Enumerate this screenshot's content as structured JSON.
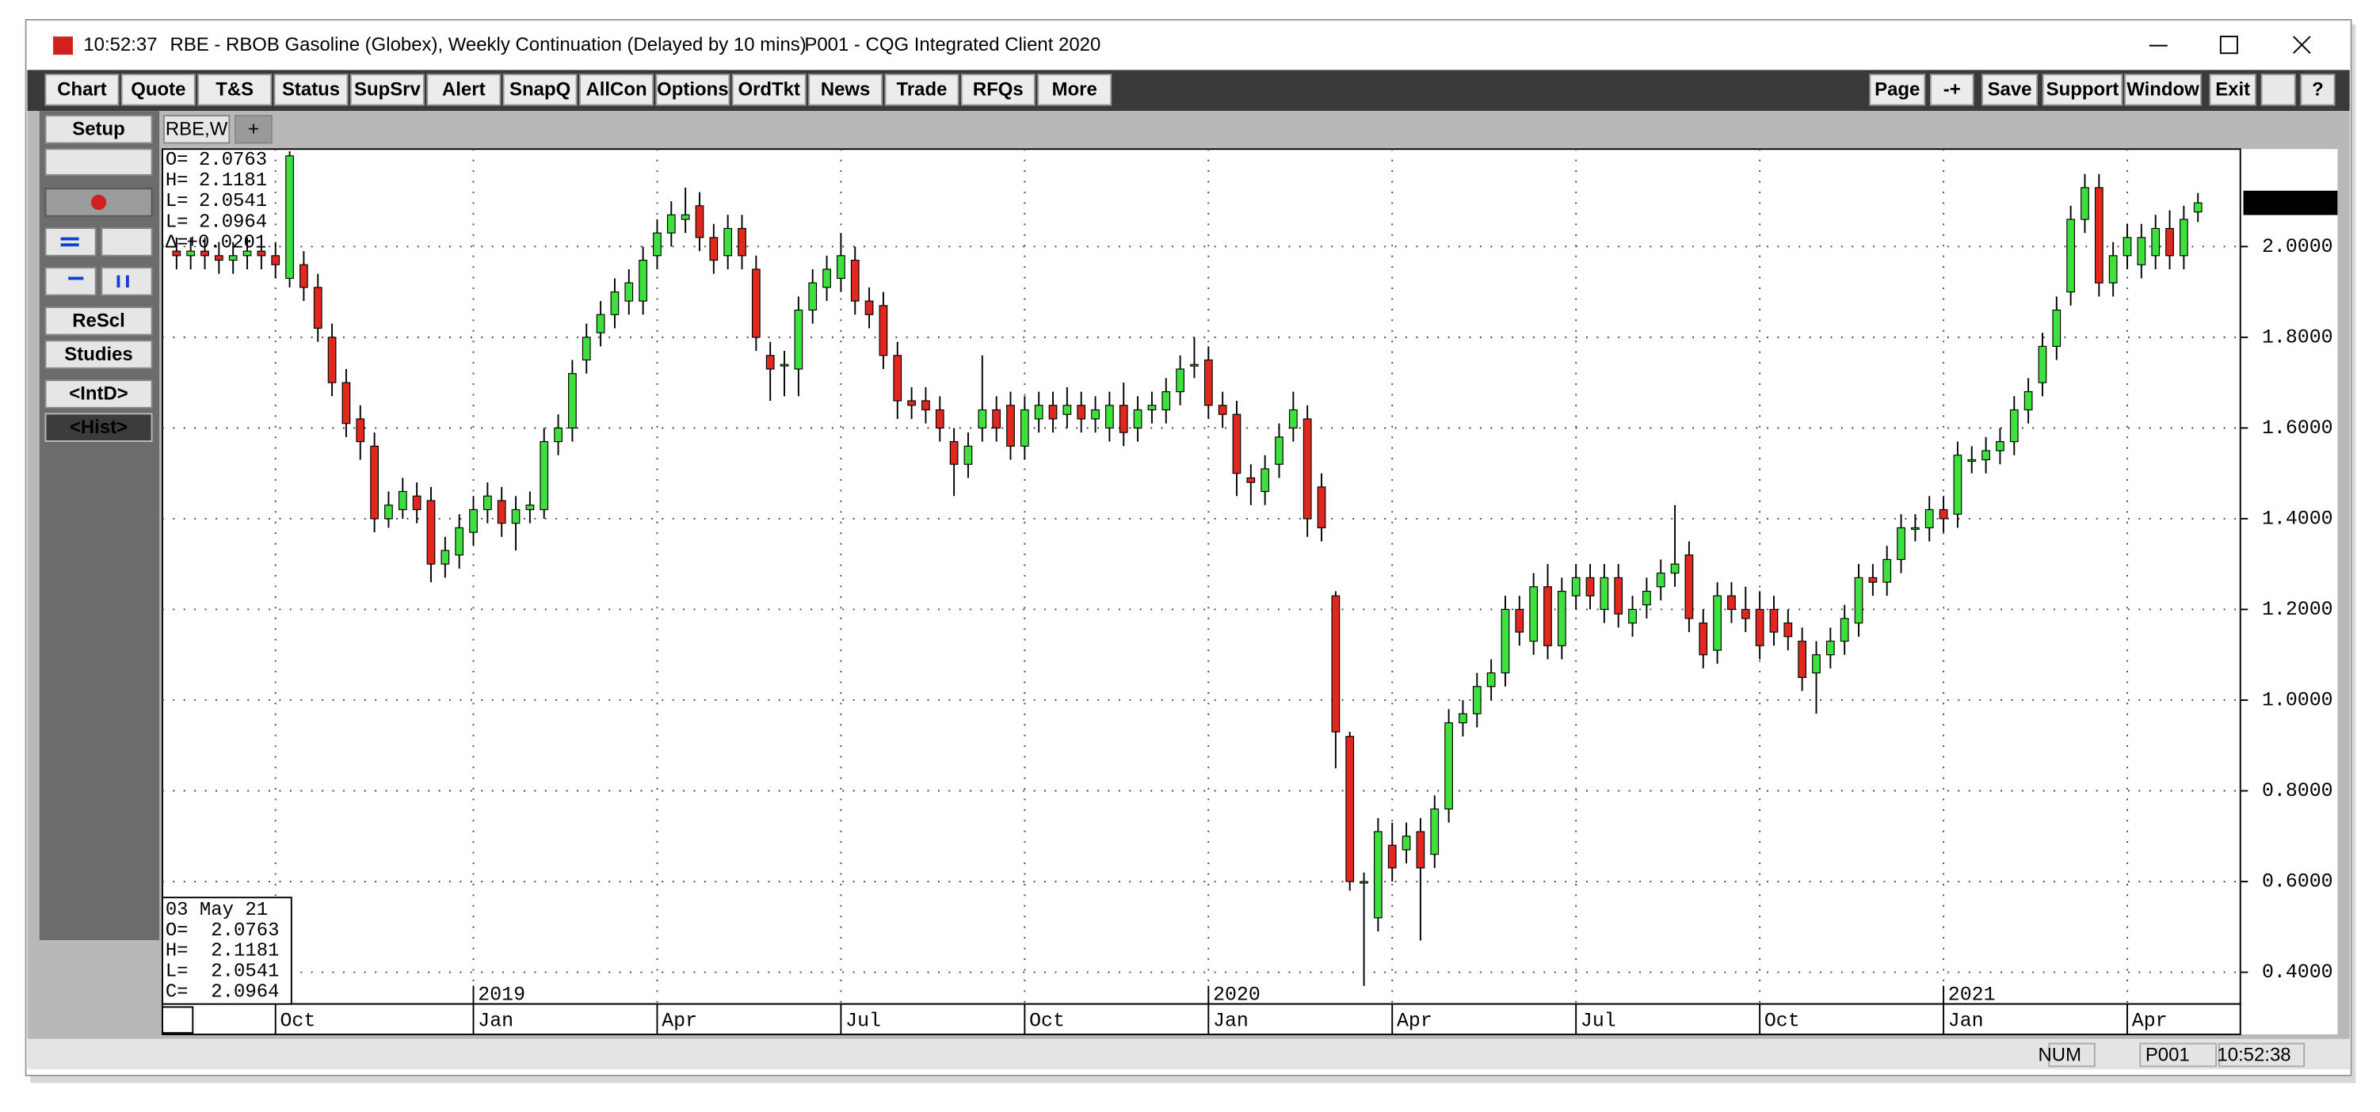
{
  "window": {
    "time": "10:52:37",
    "title": "RBE - RBOB Gasoline (Globex), Weekly Continuation (Delayed by 10 mins)",
    "app": "P001 - CQG Integrated Client 2020"
  },
  "toolbar": {
    "left": [
      "Chart",
      "Quote",
      "T&S",
      "Status",
      "SupSrv",
      "Alert",
      "SnapQ",
      "AllCon",
      "Options",
      "OrdTkt",
      "News",
      "Trade",
      "RFQs",
      "More"
    ],
    "right": [
      "Page",
      "-+",
      "Save",
      "Support",
      "Window",
      "Exit"
    ]
  },
  "sidebar": [
    "Setup",
    "ReScl",
    "Studies",
    "<IntD>",
    "<Hist>"
  ],
  "tabs": [
    "RBE,W",
    "+"
  ],
  "status_bar": [
    "NUM",
    "P001",
    "10:52:38"
  ],
  "chart_data": {
    "type": "candlestick",
    "up_color": "#3ee03e",
    "down_color": "#e0281e",
    "grid": true,
    "open": [
      1.99,
      1.98,
      1.99,
      1.98,
      1.97,
      1.98,
      1.99,
      1.98,
      1.93,
      1.96,
      1.91,
      1.8,
      1.7,
      1.62,
      1.56,
      1.4,
      1.42,
      1.45,
      1.44,
      1.3,
      1.32,
      1.37,
      1.42,
      1.44,
      1.39,
      1.42,
      1.42,
      1.57,
      1.6,
      1.75,
      1.81,
      1.85,
      1.88,
      1.88,
      1.98,
      2.03,
      2.06,
      2.09,
      2.02,
      1.98,
      2.04,
      1.95,
      1.76,
      1.74,
      1.73,
      1.86,
      1.91,
      1.93,
      1.97,
      1.88,
      1.87,
      1.76,
      1.66,
      1.66,
      1.64,
      1.57,
      1.52,
      1.6,
      1.64,
      1.65,
      1.56,
      1.62,
      1.65,
      1.63,
      1.65,
      1.62,
      1.6,
      1.65,
      1.6,
      1.64,
      1.64,
      1.68,
      1.74,
      1.75,
      1.65,
      1.63,
      1.49,
      1.46,
      1.52,
      1.6,
      1.62,
      1.47,
      1.23,
      0.92,
      0.6,
      0.52,
      0.68,
      0.67,
      0.71,
      0.66,
      0.76,
      0.95,
      0.97,
      1.03,
      1.06,
      1.2,
      1.13,
      1.25,
      1.12,
      1.23,
      1.27,
      1.2,
      1.27,
      1.17,
      1.21,
      1.25,
      1.28,
      1.32,
      1.17,
      1.11,
      1.23,
      1.2,
      1.2,
      1.2,
      1.17,
      1.13,
      1.06,
      1.1,
      1.13,
      1.17,
      1.27,
      1.26,
      1.31,
      1.38,
      1.38,
      1.42,
      1.41,
      1.53,
      1.53,
      1.55,
      1.57,
      1.64,
      1.7,
      1.78,
      1.9,
      2.06,
      2.13,
      1.92,
      1.98,
      1.96,
      1.98,
      2.04,
      1.98,
      2.0763
    ],
    "high": [
      2.02,
      2.02,
      2.02,
      2.01,
      2.01,
      2.02,
      2.02,
      2.01,
      2.21,
      1.99,
      1.94,
      1.83,
      1.73,
      1.65,
      1.59,
      1.46,
      1.49,
      1.48,
      1.47,
      1.36,
      1.41,
      1.45,
      1.48,
      1.47,
      1.45,
      1.46,
      1.6,
      1.63,
      1.75,
      1.83,
      1.88,
      1.93,
      1.95,
      2.0,
      2.06,
      2.1,
      2.13,
      2.12,
      2.05,
      2.07,
      2.07,
      1.98,
      1.79,
      1.77,
      1.89,
      1.95,
      1.98,
      2.03,
      2.0,
      1.91,
      1.9,
      1.79,
      1.69,
      1.69,
      1.67,
      1.6,
      1.59,
      1.76,
      1.67,
      1.68,
      1.67,
      1.68,
      1.68,
      1.69,
      1.68,
      1.67,
      1.68,
      1.7,
      1.67,
      1.68,
      1.71,
      1.76,
      1.8,
      1.78,
      1.68,
      1.66,
      1.52,
      1.54,
      1.61,
      1.68,
      1.65,
      1.5,
      1.24,
      0.93,
      0.62,
      0.74,
      0.73,
      0.73,
      0.74,
      0.79,
      0.98,
      1.0,
      1.06,
      1.09,
      1.23,
      1.23,
      1.28,
      1.3,
      1.27,
      1.3,
      1.3,
      1.3,
      1.3,
      1.23,
      1.27,
      1.31,
      1.43,
      1.35,
      1.2,
      1.26,
      1.26,
      1.25,
      1.24,
      1.23,
      1.2,
      1.16,
      1.13,
      1.16,
      1.21,
      1.3,
      1.3,
      1.34,
      1.41,
      1.41,
      1.45,
      1.45,
      1.57,
      1.56,
      1.58,
      1.6,
      1.67,
      1.71,
      1.81,
      1.89,
      2.09,
      2.16,
      2.16,
      2.01,
      2.05,
      2.05,
      2.07,
      2.08,
      2.09,
      2.1181
    ],
    "low": [
      1.95,
      1.95,
      1.95,
      1.94,
      1.94,
      1.95,
      1.95,
      1.93,
      1.91,
      1.88,
      1.79,
      1.67,
      1.58,
      1.53,
      1.37,
      1.38,
      1.4,
      1.39,
      1.26,
      1.27,
      1.29,
      1.34,
      1.39,
      1.36,
      1.33,
      1.39,
      1.4,
      1.54,
      1.57,
      1.72,
      1.78,
      1.82,
      1.85,
      1.85,
      1.95,
      2.0,
      2.03,
      1.99,
      1.94,
      1.95,
      1.95,
      1.77,
      1.66,
      1.67,
      1.67,
      1.83,
      1.88,
      1.9,
      1.85,
      1.82,
      1.73,
      1.62,
      1.62,
      1.61,
      1.57,
      1.45,
      1.49,
      1.57,
      1.57,
      1.53,
      1.53,
      1.59,
      1.59,
      1.6,
      1.59,
      1.59,
      1.57,
      1.56,
      1.57,
      1.61,
      1.61,
      1.65,
      1.71,
      1.62,
      1.6,
      1.45,
      1.43,
      1.43,
      1.49,
      1.57,
      1.36,
      1.35,
      0.85,
      0.58,
      0.37,
      0.49,
      0.6,
      0.64,
      0.47,
      0.63,
      0.73,
      0.92,
      0.94,
      1.0,
      1.03,
      1.12,
      1.1,
      1.09,
      1.09,
      1.2,
      1.2,
      1.17,
      1.16,
      1.14,
      1.18,
      1.22,
      1.25,
      1.15,
      1.07,
      1.08,
      1.17,
      1.15,
      1.09,
      1.12,
      1.11,
      1.02,
      0.97,
      1.07,
      1.1,
      1.14,
      1.23,
      1.23,
      1.28,
      1.35,
      1.35,
      1.37,
      1.38,
      1.5,
      1.5,
      1.52,
      1.54,
      1.61,
      1.67,
      1.75,
      1.87,
      2.03,
      1.89,
      1.89,
      1.95,
      1.93,
      1.95,
      1.95,
      1.95,
      2.0541
    ],
    "close": [
      1.98,
      1.99,
      1.98,
      1.97,
      1.98,
      1.99,
      1.98,
      1.96,
      2.2,
      1.91,
      1.82,
      1.7,
      1.61,
      1.57,
      1.4,
      1.43,
      1.46,
      1.42,
      1.3,
      1.33,
      1.38,
      1.42,
      1.45,
      1.39,
      1.42,
      1.43,
      1.57,
      1.6,
      1.72,
      1.8,
      1.85,
      1.9,
      1.92,
      1.97,
      2.03,
      2.07,
      2.07,
      2.02,
      1.97,
      2.04,
      1.98,
      1.8,
      1.73,
      1.74,
      1.86,
      1.92,
      1.95,
      1.98,
      1.88,
      1.85,
      1.76,
      1.66,
      1.65,
      1.64,
      1.6,
      1.52,
      1.56,
      1.64,
      1.6,
      1.56,
      1.64,
      1.65,
      1.62,
      1.65,
      1.62,
      1.64,
      1.65,
      1.59,
      1.64,
      1.65,
      1.68,
      1.73,
      1.74,
      1.65,
      1.63,
      1.5,
      1.48,
      1.51,
      1.58,
      1.64,
      1.4,
      1.38,
      0.93,
      0.6,
      0.6,
      0.71,
      0.63,
      0.7,
      0.63,
      0.76,
      0.95,
      0.97,
      1.03,
      1.06,
      1.2,
      1.15,
      1.25,
      1.12,
      1.24,
      1.27,
      1.23,
      1.27,
      1.19,
      1.2,
      1.24,
      1.28,
      1.3,
      1.18,
      1.1,
      1.23,
      1.2,
      1.18,
      1.12,
      1.15,
      1.14,
      1.05,
      1.1,
      1.13,
      1.18,
      1.27,
      1.26,
      1.31,
      1.38,
      1.38,
      1.42,
      1.4,
      1.54,
      1.53,
      1.55,
      1.57,
      1.64,
      1.68,
      1.78,
      1.86,
      2.06,
      2.13,
      1.92,
      1.98,
      2.02,
      2.02,
      2.04,
      1.98,
      2.06,
      2.0964
    ],
    "ylim": [
      0.33,
      2.215
    ],
    "yticks": [
      {
        "value": 0.4,
        "label": "0.4000"
      },
      {
        "value": 0.6,
        "label": "0.6000"
      },
      {
        "value": 0.8,
        "label": "0.8000"
      },
      {
        "value": 1,
        "label": "1.0000"
      },
      {
        "value": 1.2,
        "label": "1.2000"
      },
      {
        "value": 1.4,
        "label": "1.4000"
      },
      {
        "value": 1.6,
        "label": "1.6000"
      },
      {
        "value": 1.8,
        "label": "1.8000"
      },
      {
        "value": 2,
        "label": "2.0000"
      }
    ],
    "xlim": [
      -1,
      146
    ],
    "xticks": [
      {
        "value": 7,
        "label": "Oct"
      },
      {
        "value": 21,
        "label": "Jan"
      },
      {
        "value": 34,
        "label": "Apr"
      },
      {
        "value": 47,
        "label": "Jul"
      },
      {
        "value": 60,
        "label": "Oct"
      },
      {
        "value": 73,
        "label": "Jan"
      },
      {
        "value": 86,
        "label": "Apr"
      },
      {
        "value": 99,
        "label": "Jul"
      },
      {
        "value": 112,
        "label": "Oct"
      },
      {
        "value": 125,
        "label": "Jan"
      },
      {
        "value": 138,
        "label": "Apr"
      }
    ],
    "year_ticks": [
      {
        "value": 21,
        "label": "2019"
      },
      {
        "value": 73,
        "label": "2020"
      },
      {
        "value": 125,
        "label": "2021"
      }
    ],
    "info_top": {
      "labels": [
        "O=",
        "H=",
        "L=",
        "L=",
        "Δ="
      ],
      "change": "+0.0201"
    },
    "info_bottom": {
      "date": "03 May 21",
      "labels": [
        "O=",
        "H=",
        "L=",
        "C="
      ]
    }
  }
}
